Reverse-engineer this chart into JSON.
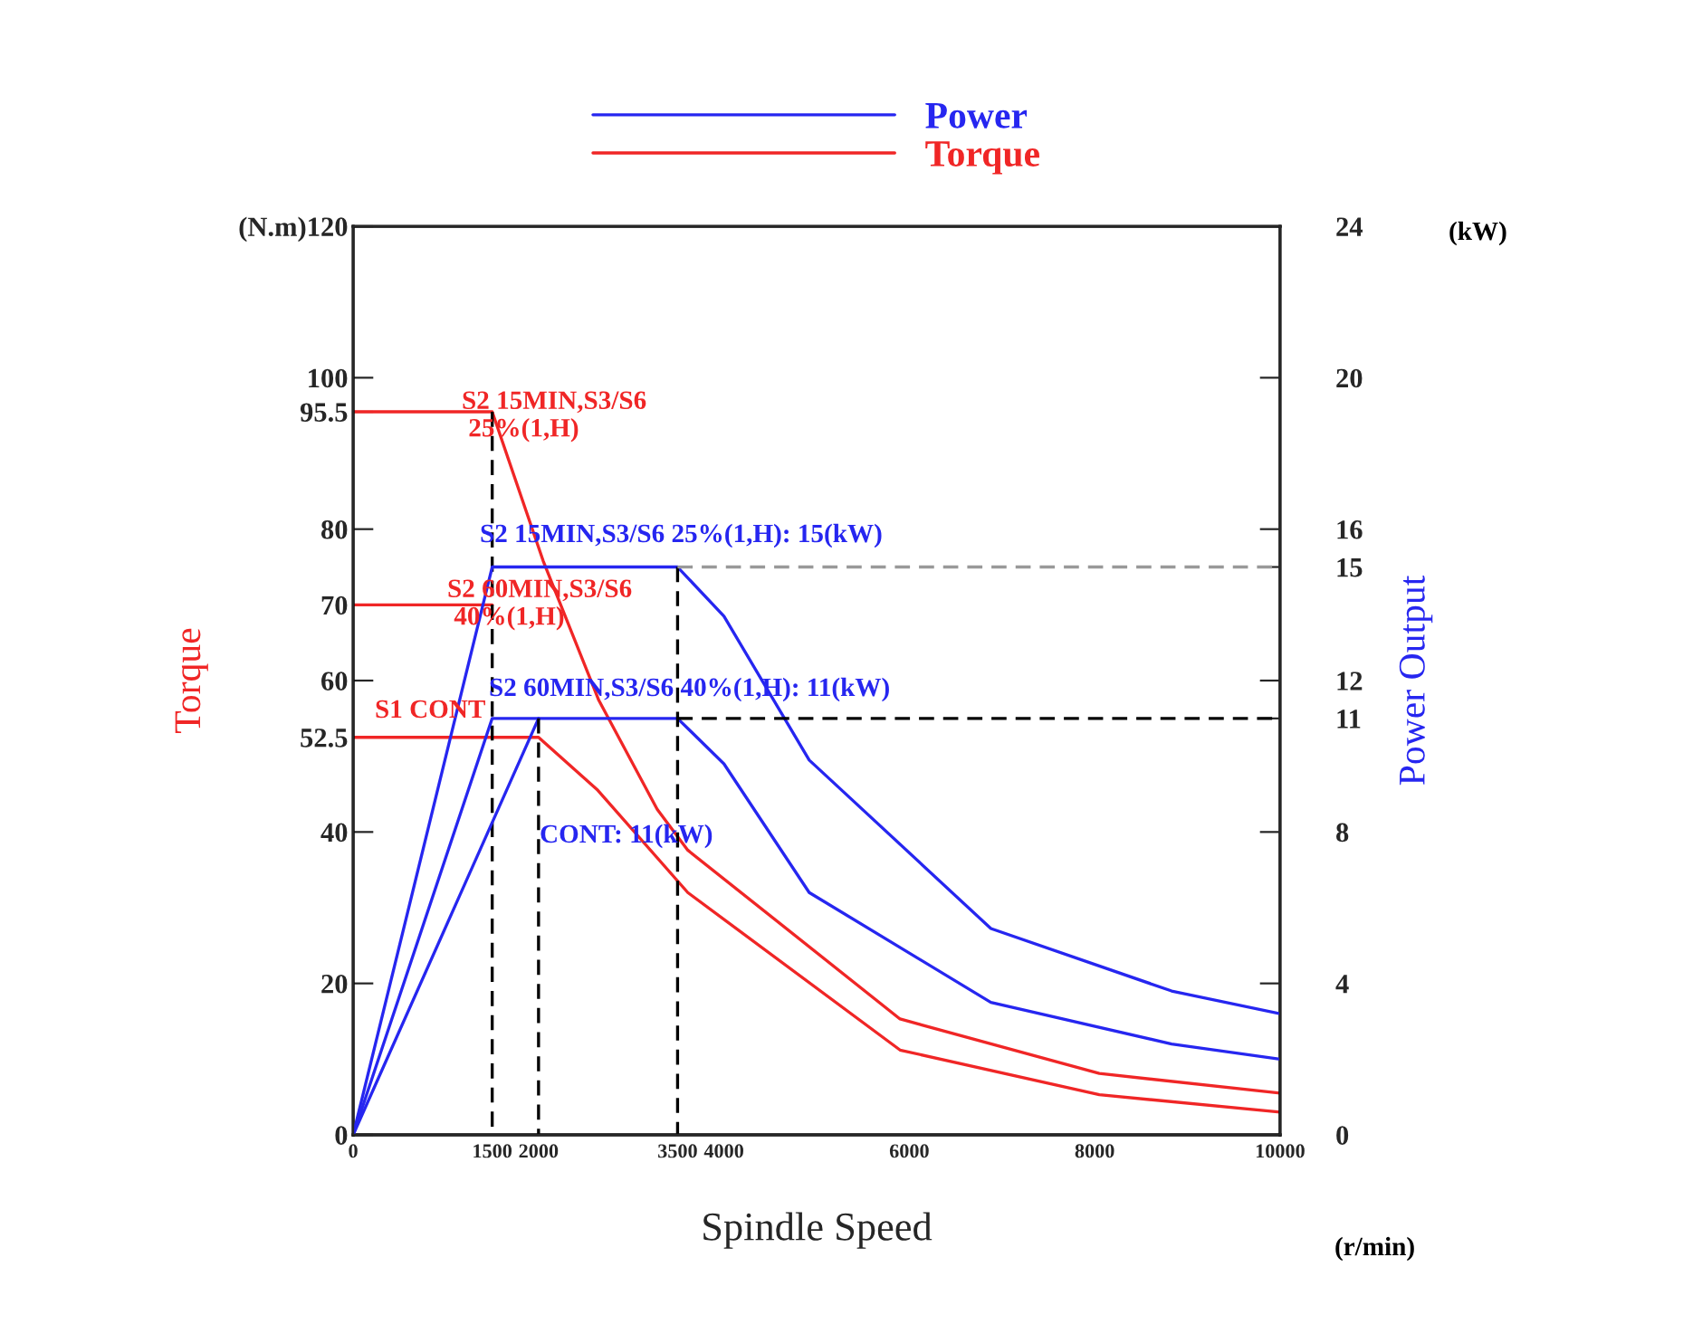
{
  "chart_data": {
    "type": "line",
    "xlabel": "Spindle Speed",
    "ylabel": "Torque",
    "y2label": "Power Output",
    "legend": "top",
    "grid": false,
    "xlim": [
      0,
      10000
    ],
    "xticks": [
      0,
      1500,
      2000,
      3500,
      4000,
      6000,
      8000,
      10000
    ],
    "ylim": [
      0,
      120
    ],
    "yticks": [
      0,
      20,
      40,
      52.5,
      60,
      70,
      80,
      95.5,
      100,
      {
        "value": 120,
        "label": "(N.m)120"
      }
    ],
    "y2lim": [
      0,
      24
    ],
    "y2ticks": [
      0,
      4,
      8,
      11,
      12,
      15,
      16,
      20,
      24
    ],
    "series": [
      {
        "name": "Power",
        "color": "#2626f0",
        "axis": "y2",
        "x": [
          0,
          1500,
          3500,
          4000,
          4920,
          6880,
          8830,
          10000
        ],
        "values": [
          0,
          15,
          15,
          13.7,
          9.9,
          5.45,
          3.8,
          3.2
        ]
      },
      {
        "name": "Torque",
        "color": "#f02626",
        "axis": "y",
        "x": [
          0,
          1500,
          2050,
          2650,
          3280,
          3610,
          5900,
          8050,
          10000
        ],
        "values": [
          95.5,
          95.5,
          75.8,
          57.4,
          43,
          37.6,
          15.3,
          8.1,
          5.5
        ]
      },
      {
        "color": "#2626f0",
        "axis": "y2",
        "x": [
          0,
          1500,
          3500,
          4000,
          4920,
          6880,
          8830,
          10000
        ],
        "values": [
          0,
          11,
          11,
          9.8,
          6.4,
          3.5,
          2.4,
          2.0
        ]
      },
      {
        "color": "#2626f0",
        "axis": "y2",
        "x": [
          0,
          2000
        ],
        "values": [
          0,
          11
        ]
      },
      {
        "color": "#f02626",
        "axis": "y",
        "x": [
          0,
          1500
        ],
        "values": [
          70,
          70
        ]
      },
      {
        "color": "#f02626",
        "axis": "y",
        "x": [
          0,
          2000,
          2640,
          3610,
          5900,
          8050,
          10000
        ],
        "values": [
          52.5,
          52.5,
          45.5,
          32,
          11.2,
          5.3,
          3
        ]
      },
      {
        "color": "#000000",
        "axis": "y",
        "line_style": "dashed",
        "x": [
          1500,
          1500
        ],
        "values": [
          95.5,
          0
        ]
      },
      {
        "color": "#000000",
        "axis": "y2",
        "line_style": "dashed",
        "x": [
          2000,
          2000
        ],
        "values": [
          11,
          0
        ]
      },
      {
        "color": "#000000",
        "axis": "y2",
        "line_style": "dashed",
        "x": [
          3500,
          3500
        ],
        "values": [
          15,
          0
        ]
      },
      {
        "color": "#000000",
        "axis": "y2",
        "line_style": "dashed",
        "x": [
          3500,
          10000
        ],
        "values": [
          11,
          11
        ]
      },
      {
        "color": "#999999",
        "axis": "y2",
        "line_style": "dashed",
        "x": [
          3500,
          10000
        ],
        "values": [
          15,
          15
        ]
      }
    ],
    "annotations": [
      "S2 15MIN,S3/S6\n 25%(1,H)",
      "S2 60MIN,S3/S6\n 40%(1,H)",
      "S1 CONT",
      "S2 15MIN,S3/S6 25%(1,H): 15(kW)",
      "S2 60MIN,S3/S6 40%(1,H): 11(kW)",
      "CONT: 11(kW)",
      "(kW)",
      "(r/min)"
    ]
  }
}
